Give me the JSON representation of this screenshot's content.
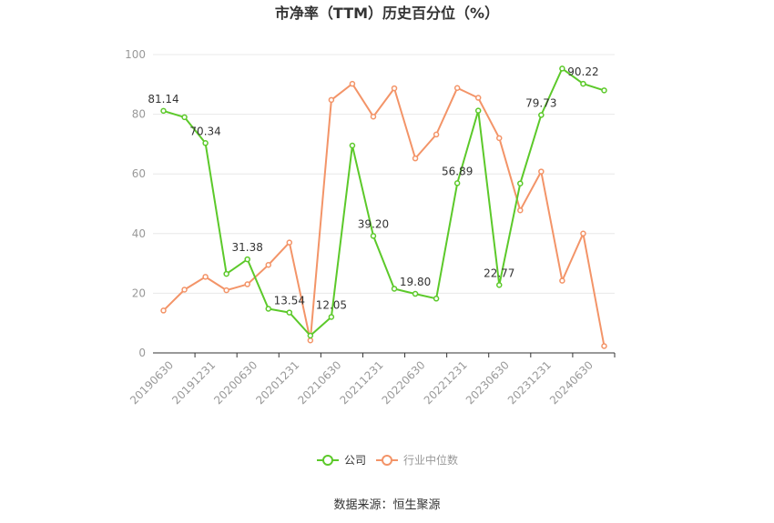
{
  "chart_data": {
    "type": "line",
    "title": "市净率（TTM）历史百分位（%）",
    "xlabel": "",
    "ylabel": "",
    "ylim": [
      0,
      100
    ],
    "yticks": [
      0,
      20,
      40,
      60,
      80,
      100
    ],
    "grid": true,
    "legend_position": "bottom-center",
    "x": [
      "20190630",
      "20190930",
      "20191231",
      "20200331",
      "20200630",
      "20200930",
      "20201231",
      "20210331",
      "20210630",
      "20210930",
      "20211231",
      "20220331",
      "20220630",
      "20220930",
      "20221231",
      "20230331",
      "20230630",
      "20230930",
      "20231231",
      "20240331",
      "20240630",
      "20240930"
    ],
    "x_tick_labels": [
      "20190630",
      "20191231",
      "20200630",
      "20201231",
      "20210630",
      "20211231",
      "20220630",
      "20221231",
      "20230630",
      "20231231",
      "20240630"
    ],
    "series": [
      {
        "name": "公司",
        "color": "#5cc92a",
        "values": [
          81.14,
          79.0,
          70.34,
          26.5,
          31.38,
          14.8,
          13.54,
          5.8,
          12.05,
          69.5,
          39.2,
          21.5,
          19.8,
          18.2,
          56.89,
          81.2,
          22.77,
          56.8,
          79.73,
          95.3,
          90.22,
          88.0
        ],
        "labels": {
          "0": "81.14",
          "2": "70.34",
          "4": "31.38",
          "6": "13.54",
          "8": "12.05",
          "10": "39.20",
          "12": "19.80",
          "14": "56.89",
          "16": "22.77",
          "18": "79.73",
          "20": "90.22"
        }
      },
      {
        "name": "行业中位数",
        "color": "#f39468",
        "values": [
          14.2,
          21.2,
          25.5,
          21.0,
          23.0,
          29.5,
          37.0,
          4.2,
          84.8,
          90.2,
          79.2,
          88.7,
          65.2,
          73.2,
          88.8,
          85.5,
          72.0,
          47.8,
          60.8,
          24.2,
          40.0,
          2.3
        ]
      }
    ]
  },
  "legend": {
    "company": "公司",
    "industry": "行业中位数"
  },
  "source": "数据来源：恒生聚源"
}
